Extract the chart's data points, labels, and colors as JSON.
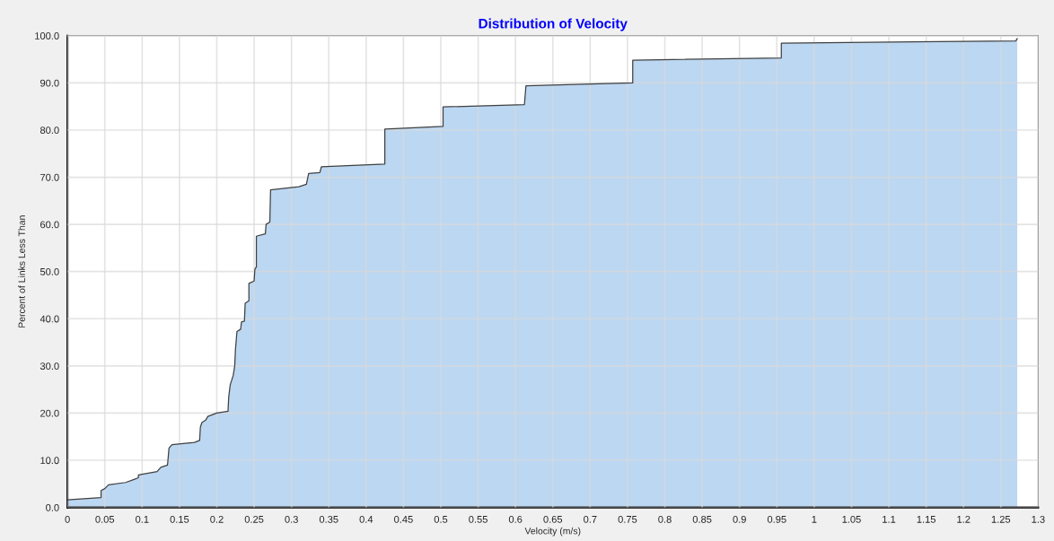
{
  "chart_data": {
    "type": "area",
    "title": "Distribution of Velocity",
    "xlabel": "Velocity (m/s)",
    "ylabel": "Percent of Links Less Than",
    "x": [
      0,
      0.045,
      0.045,
      0.05,
      0.055,
      0.078,
      0.09,
      0.095,
      0.095,
      0.12,
      0.125,
      0.134,
      0.136,
      0.14,
      0.17,
      0.177,
      0.178,
      0.18,
      0.185,
      0.188,
      0.2,
      0.215,
      0.216,
      0.218,
      0.222,
      0.224,
      0.225,
      0.227,
      0.232,
      0.233,
      0.237,
      0.238,
      0.243,
      0.243,
      0.25,
      0.251,
      0.253,
      0.253,
      0.265,
      0.266,
      0.271,
      0.272,
      0.31,
      0.32,
      0.323,
      0.338,
      0.34,
      0.425,
      0.425,
      0.503,
      0.503,
      0.612,
      0.614,
      0.757,
      0.757,
      0.956,
      0.956,
      1.27,
      1.272
    ],
    "values": [
      1.6,
      2.1,
      3.6,
      4.0,
      4.8,
      5.3,
      6.0,
      6.3,
      6.9,
      7.6,
      8.5,
      9.0,
      12.6,
      13.3,
      13.8,
      14.2,
      17.0,
      18.0,
      18.5,
      19.3,
      20.0,
      20.4,
      23.5,
      26.0,
      28.0,
      30.0,
      33.5,
      37.3,
      37.8,
      39.3,
      39.5,
      43.3,
      43.8,
      47.5,
      48.0,
      50.5,
      51.0,
      57.5,
      58.0,
      60.0,
      60.5,
      67.3,
      68.0,
      68.5,
      70.8,
      71.0,
      72.2,
      72.8,
      80.2,
      80.8,
      84.9,
      85.4,
      89.4,
      90.0,
      94.8,
      95.3,
      98.4,
      98.9,
      99.4
    ],
    "color": "#bcd7f2",
    "xlim": [
      0,
      1.3
    ],
    "ylim": [
      0,
      100
    ],
    "xticks": [
      0,
      0.05,
      0.1,
      0.15,
      0.2,
      0.25,
      0.3,
      0.35,
      0.4,
      0.45,
      0.5,
      0.55,
      0.6,
      0.65,
      0.7,
      0.75,
      0.8,
      0.85,
      0.9,
      0.95,
      1,
      1.05,
      1.1,
      1.15,
      1.2,
      1.25,
      1.3
    ],
    "yticks": [
      {
        "value": 0,
        "label": "0.0"
      },
      {
        "value": 10,
        "label": "10.0"
      },
      {
        "value": 20,
        "label": "20.0"
      },
      {
        "value": 30,
        "label": "30.0"
      },
      {
        "value": 40,
        "label": "40.0"
      },
      {
        "value": 50,
        "label": "50.0"
      },
      {
        "value": 60,
        "label": "60.0"
      },
      {
        "value": 70,
        "label": "70.0"
      },
      {
        "value": 80,
        "label": "80.0"
      },
      {
        "value": 90,
        "label": "90.0"
      },
      {
        "value": 100,
        "label": "100.0"
      }
    ],
    "grid": true
  }
}
